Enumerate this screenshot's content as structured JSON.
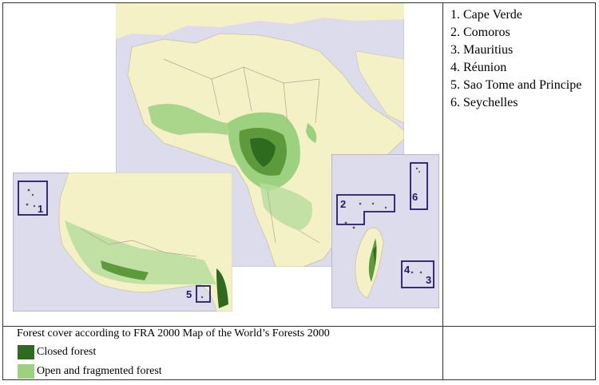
{
  "countries": [
    "1. Cape Verde",
    "2. Comoros",
    "3. Mauritius",
    "4. Réunion",
    "5. Sao Tome and Principe",
    "6. Seychelles"
  ],
  "inset_labels": {
    "cape_verde": "1",
    "comoros": "2",
    "mauritius": "3",
    "reunion": "4",
    "sao_tome": "5",
    "seychelles": "6"
  },
  "legend": {
    "title": "Forest cover according to FRA 2000 Map of the World’s Forests 2000",
    "items": [
      {
        "label": "Closed forest",
        "color": "#2e6b1e"
      },
      {
        "label": "Open and fragmented forest",
        "color": "#9bd17f"
      }
    ]
  },
  "colors": {
    "land": "#f4f1c7",
    "water": "#dcdcec",
    "inset_frame": "#b0a8c8",
    "marker_box": "#241a6b"
  }
}
